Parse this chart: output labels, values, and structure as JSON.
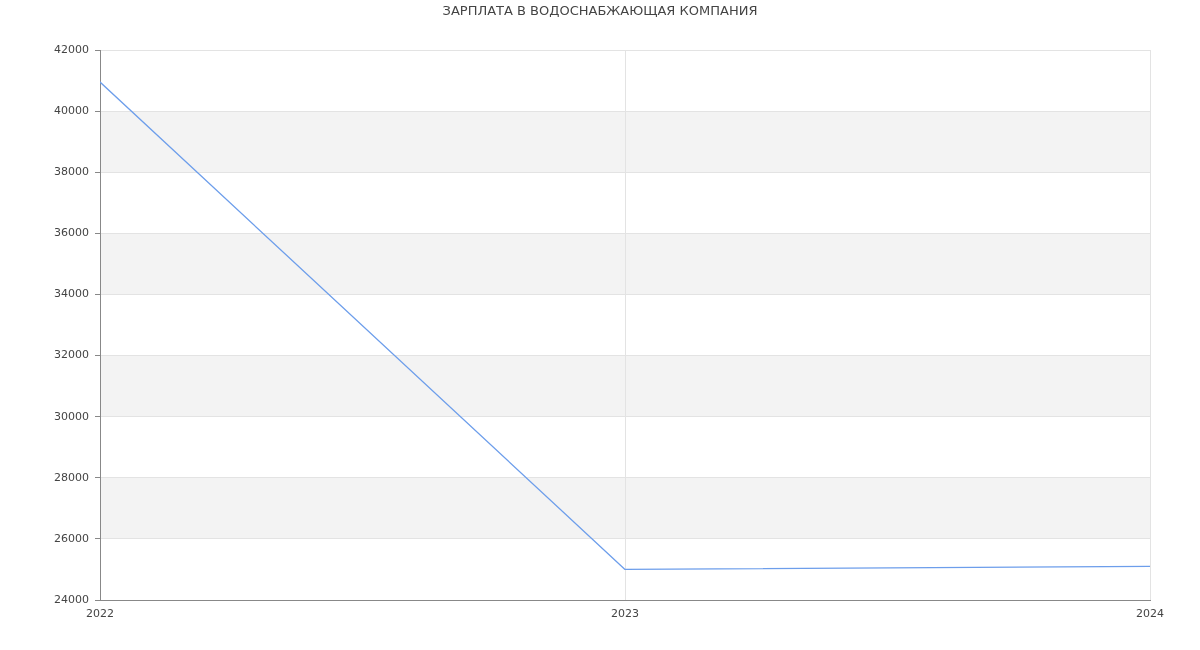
{
  "chart_data": {
    "type": "line",
    "title": "ЗАРПЛАТА В ВОДОСНАБЖАЮЩАЯ КОМПАНИЯ",
    "x": [
      2022,
      2023,
      2024
    ],
    "series": [
      {
        "color": "#6d9eeb",
        "values": [
          40950,
          25000,
          25100
        ]
      }
    ],
    "xlim": [
      2022,
      2024
    ],
    "xticks": [
      2022,
      2023,
      2024
    ],
    "ylim": [
      24000,
      42000
    ],
    "yticks": [
      24000,
      26000,
      28000,
      30000,
      32000,
      34000,
      36000,
      38000,
      40000,
      42000
    ],
    "grid": true,
    "bands": [
      {
        "axis": "y",
        "from": 26000,
        "to": 28000,
        "color": "#f3f3f3"
      },
      {
        "axis": "y",
        "from": 30000,
        "to": 32000,
        "color": "#f3f3f3"
      },
      {
        "axis": "y",
        "from": 34000,
        "to": 36000,
        "color": "#f3f3f3"
      },
      {
        "axis": "y",
        "from": 38000,
        "to": 40000,
        "color": "#f3f3f3"
      }
    ]
  }
}
